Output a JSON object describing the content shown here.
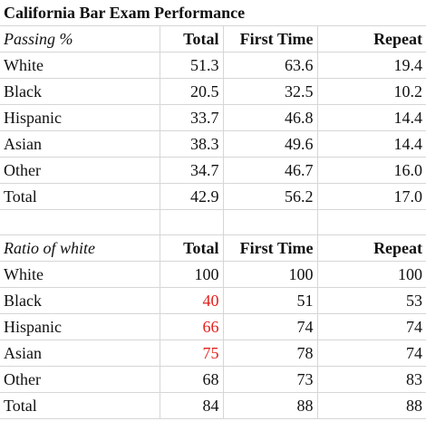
{
  "title": "California Bar Exam Performance",
  "columns": [
    "Total",
    "First Time",
    "Repeat"
  ],
  "colors": {
    "highlight": "#e3201b",
    "gridline": "#d6d6d6",
    "text": "#111111"
  },
  "passing": {
    "label": "Passing %",
    "rows": [
      {
        "name": "White",
        "total": "51.3",
        "first": "63.6",
        "repeat": "19.4"
      },
      {
        "name": "Black",
        "total": "20.5",
        "first": "32.5",
        "repeat": "10.2"
      },
      {
        "name": "Hispanic",
        "total": "33.7",
        "first": "46.8",
        "repeat": "14.4"
      },
      {
        "name": "Asian",
        "total": "38.3",
        "first": "49.6",
        "repeat": "14.4"
      },
      {
        "name": "Other",
        "total": "34.7",
        "first": "46.7",
        "repeat": "16.0"
      },
      {
        "name": "Total",
        "total": "42.9",
        "first": "56.2",
        "repeat": "17.0"
      }
    ]
  },
  "ratio": {
    "label": "Ratio of white",
    "rows": [
      {
        "name": "White",
        "total": "100",
        "first": "100",
        "repeat": "100",
        "highlight": false
      },
      {
        "name": "Black",
        "total": "40",
        "first": "51",
        "repeat": "53",
        "highlight": true
      },
      {
        "name": "Hispanic",
        "total": "66",
        "first": "74",
        "repeat": "74",
        "highlight": true
      },
      {
        "name": "Asian",
        "total": "75",
        "first": "78",
        "repeat": "74",
        "highlight": true
      },
      {
        "name": "Other",
        "total": "68",
        "first": "73",
        "repeat": "83",
        "highlight": false
      },
      {
        "name": "Total",
        "total": "84",
        "first": "88",
        "repeat": "88",
        "highlight": false
      }
    ]
  }
}
